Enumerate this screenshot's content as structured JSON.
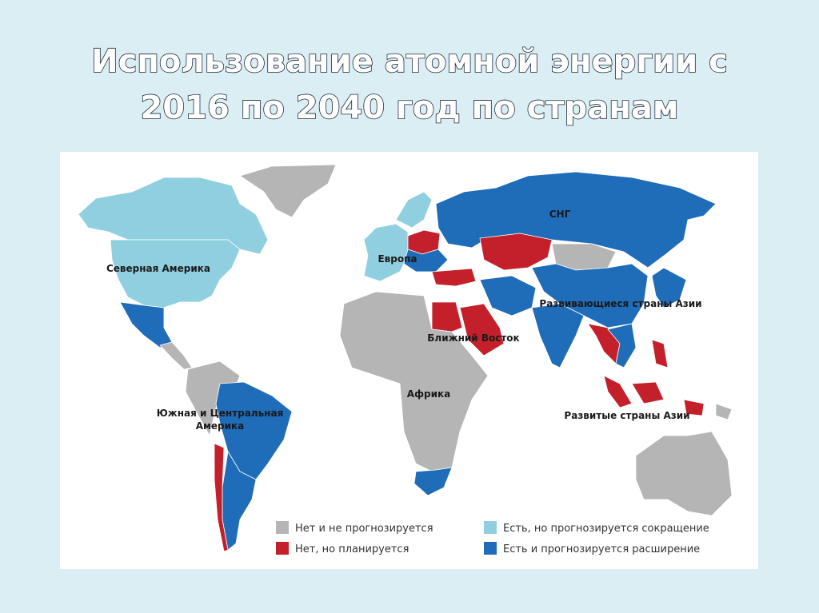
{
  "title": {
    "lines": [
      "Использование атомной энергии с",
      "2016 по 2040 год по странам"
    ]
  },
  "map": {
    "region_labels": [
      {
        "lines": [
          "СНГ"
        ]
      },
      {
        "lines": [
          "Северная Америка"
        ]
      },
      {
        "lines": [
          "Европа"
        ]
      },
      {
        "lines": [
          "Развивающиеся страны Азии"
        ]
      },
      {
        "lines": [
          "Ближний Восток"
        ]
      },
      {
        "lines": [
          "Африка"
        ]
      },
      {
        "lines": [
          "Южная и Центральная",
          "Америка"
        ]
      },
      {
        "lines": [
          "Развитые страны Азии"
        ]
      }
    ],
    "legend": [
      {
        "label": "Нет и не прогнозируется",
        "color": "#b5b5b5"
      },
      {
        "label": "Нет, но планируется",
        "color": "#c4202b"
      },
      {
        "label": "Есть, но прогнозируется сокращение",
        "color": "#8fcfe0"
      },
      {
        "label": "Есть и прогнозируется расширение",
        "color": "#1f6cb8"
      }
    ]
  }
}
